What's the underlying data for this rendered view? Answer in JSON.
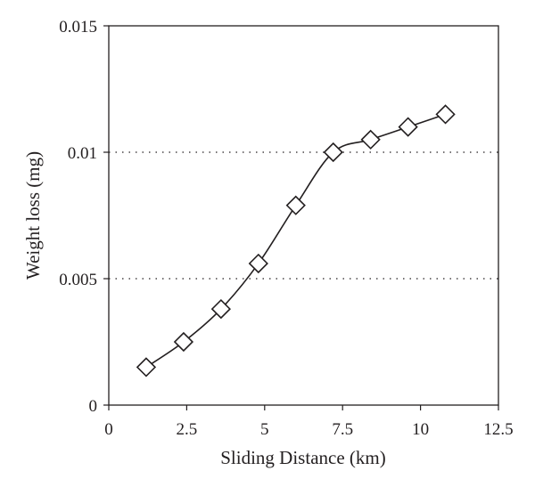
{
  "chart_data": {
    "type": "line",
    "xlabel": "Sliding Distance (km)",
    "ylabel": "Weight loss (mg)",
    "xlim": [
      0,
      12.5
    ],
    "ylim": [
      0,
      0.015
    ],
    "xticks": [
      0,
      2.5,
      5,
      7.5,
      10,
      12.5
    ],
    "xtick_labels": [
      "0",
      "2.5",
      "5",
      "7.5",
      "10",
      "12.5"
    ],
    "yticks": [
      0,
      0.005,
      0.01,
      0.015
    ],
    "ytick_labels": [
      "0",
      "0.005",
      "0.01",
      "0.015"
    ],
    "grid": "dotted horizontal lines at 0.005 and 0.01",
    "legend": "none",
    "marker": "diamond",
    "line_color": "#231f20",
    "series": [
      {
        "x": [
          1.2,
          2.4,
          3.6,
          4.8,
          6.0,
          7.2,
          8.4,
          9.6,
          10.8
        ],
        "y": [
          0.0015,
          0.0025,
          0.0038,
          0.0056,
          0.0079,
          0.01,
          0.0105,
          0.011,
          0.0115
        ]
      }
    ]
  }
}
